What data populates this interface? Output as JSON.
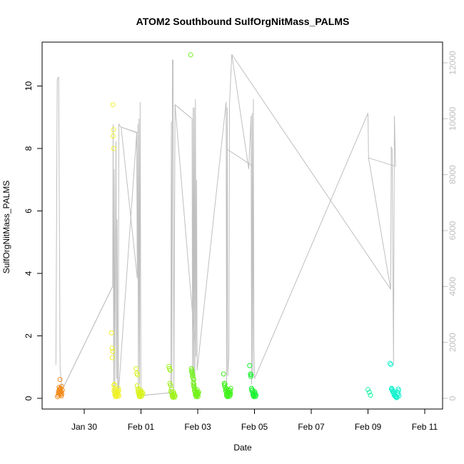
{
  "chart_data": {
    "type": "scatter",
    "title": "ATOM2 Southbound SulfOrgNitMass_PALMS",
    "xlabel": "Date",
    "ylabel": "SulfOrgNitMass_PALMS",
    "x_start": "2017-01-28",
    "x_end": "2017-02-11",
    "xlim": [
      "2017-01-28",
      "2017-02-11"
    ],
    "ylim": [
      0,
      11
    ],
    "y2lim": [
      0,
      12300
    ],
    "x_ticks": [
      {
        "date": "2017-01-30",
        "label": "Jan 30"
      },
      {
        "date": "2017-02-01",
        "label": "Feb 01"
      },
      {
        "date": "2017-02-03",
        "label": "Feb 03"
      },
      {
        "date": "2017-02-05",
        "label": "Feb 05"
      },
      {
        "date": "2017-02-07",
        "label": "Feb 07"
      },
      {
        "date": "2017-02-09",
        "label": "Feb 09"
      },
      {
        "date": "2017-02-11",
        "label": "Feb 11"
      }
    ],
    "y_ticks": [
      {
        "value": 0,
        "label": "0"
      },
      {
        "value": 2,
        "label": "2"
      },
      {
        "value": 4,
        "label": "4"
      },
      {
        "value": 6,
        "label": "6"
      },
      {
        "value": 8,
        "label": "8"
      },
      {
        "value": 10,
        "label": "10"
      }
    ],
    "y2_ticks": [
      {
        "value": 0,
        "label": "0"
      },
      {
        "value": 2000,
        "label": "2000"
      },
      {
        "value": 4000,
        "label": "4000"
      },
      {
        "value": 6000,
        "label": "6000"
      },
      {
        "value": 8000,
        "label": "8000"
      },
      {
        "value": 10000,
        "label": "10000"
      },
      {
        "value": 12000,
        "label": "12000"
      }
    ],
    "grid": false,
    "legend": "none",
    "altitude_color": "#bfbfbf",
    "flights": [
      {
        "date": "2017-01-29",
        "center": 1.15,
        "width": 0.14,
        "color": "#f28a1a",
        "values": [
          0.05,
          0.1,
          0.15,
          0.2,
          0.25,
          0.3,
          0.35,
          0.2,
          0.12,
          0.6,
          0.32,
          0.28,
          0.18,
          0.08,
          0.22,
          0.38,
          0.26,
          0.14
        ]
      },
      {
        "date": "2017-02-01",
        "center": 3.1,
        "width": 0.24,
        "color": "#f0f22a",
        "values": [
          2.1,
          1.6,
          1.5,
          1.3,
          9.4,
          8.6,
          8.4,
          8.0,
          0.45,
          0.42,
          0.3,
          0.25,
          0.2,
          0.15,
          0.12,
          0.1,
          0.08,
          0.05,
          0.18,
          0.22,
          0.28,
          0.14,
          0.1,
          0.06,
          0.2,
          0.16,
          0.12,
          0.25,
          0.32,
          0.08
        ]
      },
      {
        "date": "2017-02-01",
        "center": 3.95,
        "width": 0.2,
        "color": "#d9f21a",
        "values": [
          0.95,
          0.8,
          0.75,
          0.4,
          0.3,
          0.25,
          0.2,
          0.15,
          0.12,
          0.1,
          0.08,
          0.05,
          0.18,
          0.22,
          0.28,
          0.14,
          0.1,
          0.06,
          0.2,
          0.16
        ]
      },
      {
        "date": "2017-02-03",
        "center": 5.1,
        "width": 0.2,
        "color": "#9ef21a",
        "values": [
          1.02,
          0.95,
          0.9,
          0.48,
          0.42,
          0.3,
          0.22,
          0.18,
          0.12,
          0.1,
          0.08,
          0.05,
          0.03,
          0.15,
          0.2,
          0.12,
          0.07,
          0.04
        ]
      },
      {
        "date": "2017-02-03",
        "center": 5.9,
        "width": 0.26,
        "color": "#72f21a",
        "values": [
          11.0,
          0.95,
          0.9,
          0.85,
          0.8,
          0.75,
          0.7,
          0.65,
          0.6,
          0.5,
          0.45,
          0.4,
          0.35,
          0.3,
          0.25,
          0.2,
          0.15,
          0.12,
          0.1,
          0.08,
          0.05,
          0.18,
          0.22,
          0.28,
          0.14,
          0.1,
          0.06,
          0.2,
          0.16
        ]
      },
      {
        "date": "2017-02-05",
        "center": 7.05,
        "width": 0.24,
        "color": "#3ff21a",
        "values": [
          0.78,
          0.48,
          0.45,
          0.4,
          0.35,
          0.3,
          0.25,
          0.2,
          0.15,
          0.12,
          0.1,
          0.08,
          0.05,
          0.18,
          0.22,
          0.28,
          0.14,
          0.1,
          0.06,
          0.2,
          0.16,
          0.12,
          0.25,
          0.32
        ]
      },
      {
        "date": "2017-02-06",
        "center": 7.95,
        "width": 0.2,
        "color": "#1af231",
        "values": [
          1.05,
          0.78,
          0.75,
          0.7,
          0.32,
          0.28,
          0.25,
          0.2,
          0.15,
          0.12,
          0.1,
          0.08,
          0.05,
          0.18,
          0.22,
          0.14,
          0.1,
          0.06
        ]
      },
      {
        "date": "2017-02-10",
        "center": 12.05,
        "width": 0.06,
        "color": "#1af2a3",
        "values": [
          0.28,
          0.2,
          0.1
        ]
      },
      {
        "date": "2017-02-11",
        "center": 12.95,
        "width": 0.3,
        "color": "#1af2cf",
        "values": [
          1.12,
          1.08,
          0.32,
          0.3,
          0.28,
          0.25,
          0.22,
          0.2,
          0.18,
          0.15,
          0.12,
          0.1,
          0.08,
          0.06,
          0.05,
          0.04,
          0.03,
          0.02,
          0.2,
          0.16,
          0.12,
          0.25,
          0.3,
          0.08
        ]
      }
    ],
    "altitude_trace": [
      [
        1.0,
        1200
      ],
      [
        1.05,
        11400
      ],
      [
        1.1,
        11500
      ],
      [
        1.15,
        1100
      ],
      [
        1.22,
        300
      ],
      [
        3.0,
        4000
      ],
      [
        3.02,
        9800
      ],
      [
        3.04,
        200
      ],
      [
        3.06,
        8200
      ],
      [
        3.08,
        400
      ],
      [
        3.1,
        5500
      ],
      [
        3.12,
        9200
      ],
      [
        3.14,
        700
      ],
      [
        3.16,
        6400
      ],
      [
        3.18,
        300
      ],
      [
        3.2,
        100
      ],
      [
        3.22,
        9800
      ],
      [
        3.3,
        9700
      ],
      [
        3.85,
        9500
      ],
      [
        3.87,
        4300
      ],
      [
        3.89,
        9800
      ],
      [
        3.91,
        300
      ],
      [
        3.93,
        10000
      ],
      [
        3.95,
        500
      ],
      [
        3.97,
        10600
      ],
      [
        4.0,
        100
      ],
      [
        5.05,
        200
      ],
      [
        5.07,
        9900
      ],
      [
        5.09,
        400
      ],
      [
        5.11,
        12100
      ],
      [
        5.13,
        12100
      ],
      [
        5.16,
        300
      ],
      [
        5.2,
        10500
      ],
      [
        5.8,
        10000
      ],
      [
        5.82,
        300
      ],
      [
        5.84,
        10400
      ],
      [
        5.86,
        800
      ],
      [
        5.88,
        10400
      ],
      [
        5.9,
        200
      ],
      [
        5.92,
        10700
      ],
      [
        5.94,
        1500
      ],
      [
        5.96,
        7800
      ],
      [
        5.98,
        1000
      ],
      [
        7.0,
        10600
      ],
      [
        7.02,
        300
      ],
      [
        7.04,
        10400
      ],
      [
        7.06,
        800
      ],
      [
        7.1,
        1600
      ],
      [
        7.12,
        10500
      ],
      [
        7.15,
        11200
      ],
      [
        7.2,
        12300
      ],
      [
        7.8,
        8200
      ],
      [
        7.88,
        10100
      ],
      [
        7.9,
        500
      ],
      [
        7.92,
        10200
      ],
      [
        7.94,
        800
      ],
      [
        7.96,
        10700
      ],
      [
        7.98,
        1900
      ],
      [
        8.0,
        700
      ],
      [
        12.0,
        10200
      ],
      [
        12.02,
        8600
      ],
      [
        12.8,
        3900
      ],
      [
        12.82,
        9000
      ],
      [
        12.85,
        8900
      ],
      [
        12.9,
        1200
      ],
      [
        12.93,
        10100
      ],
      [
        12.97,
        8300
      ]
    ],
    "altitude_connectors": [
      [
        [
          1.22,
          300
        ],
        [
          3.0,
          4000
        ]
      ],
      [
        [
          3.3,
          9700
        ],
        [
          3.9,
          9500
        ]
      ],
      [
        [
          3.3,
          9700
        ],
        [
          3.87,
          4300
        ]
      ],
      [
        [
          5.2,
          10500
        ],
        [
          5.8,
          10000
        ]
      ],
      [
        [
          5.2,
          10500
        ],
        [
          5.9,
          2000
        ]
      ],
      [
        [
          7.05,
          8900
        ],
        [
          7.95,
          8300
        ]
      ],
      [
        [
          7.2,
          12300
        ],
        [
          12.8,
          3900
        ]
      ],
      [
        [
          12.02,
          8600
        ],
        [
          12.97,
          8300
        ]
      ],
      [
        [
          4.0,
          100
        ],
        [
          5.05,
          200
        ]
      ],
      [
        [
          3.2,
          100
        ],
        [
          3.85,
          9500
        ]
      ]
    ]
  }
}
